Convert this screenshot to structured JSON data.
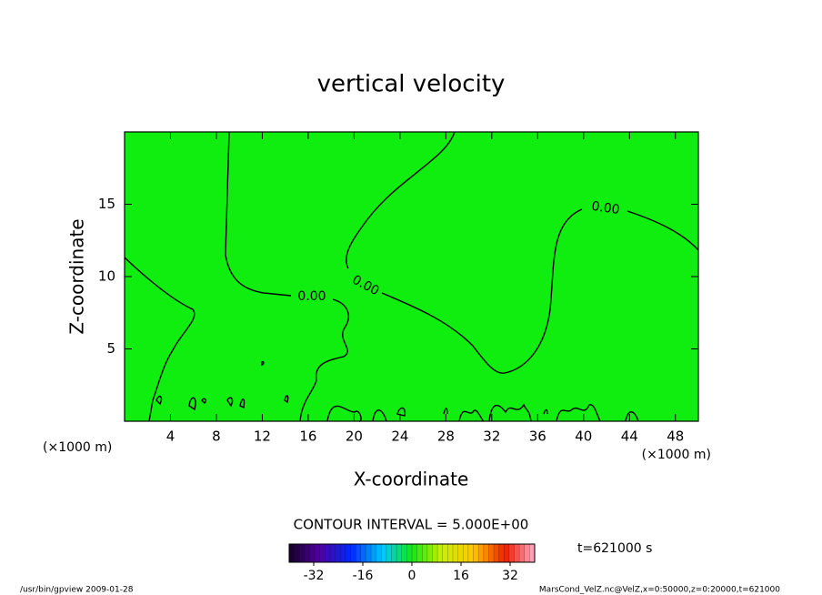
{
  "chart_data": {
    "type": "contour",
    "title": "vertical velocity",
    "xlabel": "X-coordinate",
    "ylabel": "Z-coordinate",
    "xunit": "(×1000 m)",
    "yunit": "(×1000 m)",
    "xlim": [
      0,
      50
    ],
    "xticks": [
      4,
      8,
      12,
      16,
      20,
      24,
      28,
      32,
      36,
      40,
      44,
      48
    ],
    "ylim": [
      0,
      20
    ],
    "yticks": [
      5,
      10,
      15
    ],
    "fill_color": "#10ee10",
    "contour_labels": [
      {
        "value": 0,
        "label": "0.00"
      },
      {
        "value": 0,
        "label": "0.00"
      },
      {
        "value": 0,
        "label": "0.00"
      }
    ],
    "contour_interval": "CONTOUR INTERVAL = 5.000E+00",
    "colorbar": {
      "clim": [
        -40,
        40
      ],
      "ticks": [
        -32,
        -16,
        0,
        16,
        32
      ]
    },
    "time_label": "t=621000 s",
    "footer_left": "/usr/bin/gpview  2009-01-28",
    "footer_right": "MarsCond_VelZ.nc@VelZ,x=0:50000,z=0:20000,t=621000"
  }
}
